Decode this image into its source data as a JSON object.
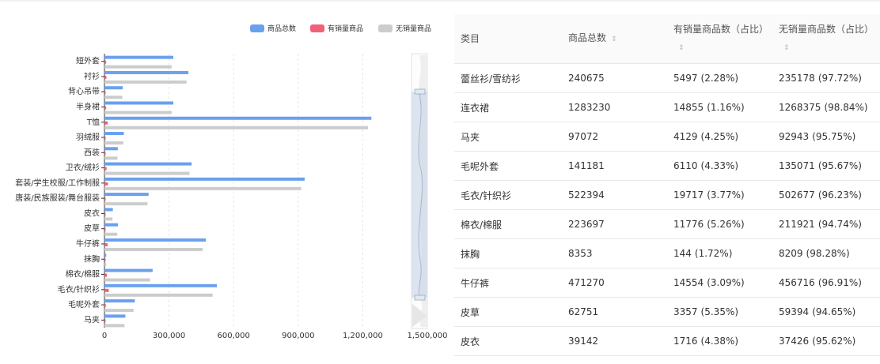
{
  "chart_data": {
    "type": "bar",
    "orientation": "horizontal",
    "categories": [
      "短外套",
      "衬衫",
      "背心吊带",
      "半身裙",
      "T恤",
      "羽绒服",
      "西装",
      "卫衣/绒衫",
      "套装/学生校服/工作制服",
      "唐装/民族服装/舞台服装",
      "皮衣",
      "皮草",
      "牛仔裤",
      "抹胸",
      "棉衣/棉服",
      "毛衣/针织衫",
      "毛呢外套",
      "马夹"
    ],
    "series": [
      {
        "name": "商品总数",
        "color": "#6aa0ee",
        "values": [
          320000,
          390000,
          85000,
          320000,
          1240000,
          90000,
          62000,
          405000,
          930000,
          205000,
          39142,
          62751,
          471270,
          8353,
          223697,
          522394,
          141181,
          97072
        ]
      },
      {
        "name": "有销量商品",
        "color": "#ef6178",
        "values": [
          8000,
          9000,
          2000,
          8000,
          15000,
          2000,
          1500,
          10000,
          16000,
          5000,
          1716,
          3357,
          14554,
          144,
          11776,
          19717,
          6110,
          4129
        ]
      },
      {
        "name": "无销量商品",
        "color": "#cccccc",
        "values": [
          312000,
          381000,
          83000,
          312000,
          1225000,
          88000,
          60500,
          395000,
          914000,
          200000,
          37426,
          59394,
          456716,
          8209,
          211921,
          502677,
          135071,
          92943
        ]
      }
    ],
    "xticks": [
      "0",
      "300,000",
      "600,000",
      "900,000",
      "1,200,000",
      "1,500,000"
    ],
    "xlim": [
      0,
      1500000
    ],
    "legend_position": "top-right",
    "grid": true
  },
  "table": {
    "headers": [
      "类目",
      "商品总数",
      "有销量商品数（占比）",
      "无销量商品数（占比）"
    ],
    "sort_icon": "⇕",
    "rows": [
      {
        "category": "蕾丝衫/雪纺衫",
        "total": "240675",
        "sold": "5497",
        "sold_pct": "(2.28%)",
        "unsold": "235178",
        "unsold_pct": "(97.72%)"
      },
      {
        "category": "连衣裙",
        "total": "1283230",
        "sold": "14855",
        "sold_pct": "(1.16%)",
        "unsold": "1268375",
        "unsold_pct": "(98.84%)"
      },
      {
        "category": "马夹",
        "total": "97072",
        "sold": "4129",
        "sold_pct": "(4.25%)",
        "unsold": "92943",
        "unsold_pct": "(95.75%)"
      },
      {
        "category": "毛呢外套",
        "total": "141181",
        "sold": "6110",
        "sold_pct": "(4.33%)",
        "unsold": "135071",
        "unsold_pct": "(95.67%)"
      },
      {
        "category": "毛衣/针织衫",
        "total": "522394",
        "sold": "19717",
        "sold_pct": "(3.77%)",
        "unsold": "502677",
        "unsold_pct": "(96.23%)"
      },
      {
        "category": "棉衣/棉服",
        "total": "223697",
        "sold": "11776",
        "sold_pct": "(5.26%)",
        "unsold": "211921",
        "unsold_pct": "(94.74%)"
      },
      {
        "category": "抹胸",
        "total": "8353",
        "sold": "144",
        "sold_pct": "(1.72%)",
        "unsold": "8209",
        "unsold_pct": "(98.28%)"
      },
      {
        "category": "牛仔裤",
        "total": "471270",
        "sold": "14554",
        "sold_pct": "(3.09%)",
        "unsold": "456716",
        "unsold_pct": "(96.91%)"
      },
      {
        "category": "皮草",
        "total": "62751",
        "sold": "3357",
        "sold_pct": "(5.35%)",
        "unsold": "59394",
        "unsold_pct": "(94.65%)"
      },
      {
        "category": "皮衣",
        "total": "39142",
        "sold": "1716",
        "sold_pct": "(4.38%)",
        "unsold": "37426",
        "unsold_pct": "(95.62%)"
      }
    ]
  }
}
